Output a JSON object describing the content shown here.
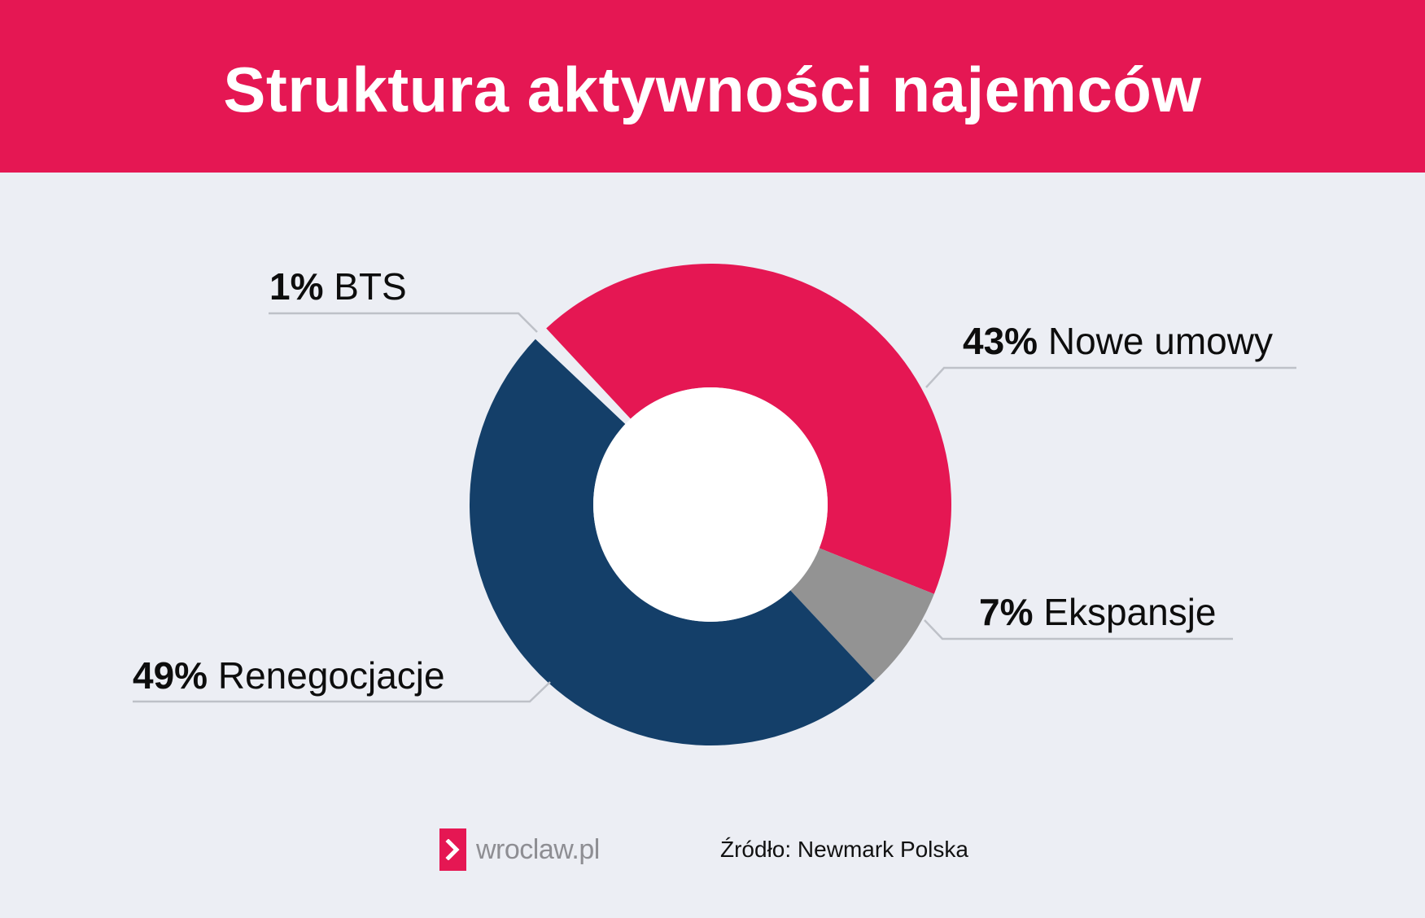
{
  "header": {
    "title": "Struktura aktywności najemców",
    "background": "#E51753"
  },
  "chart_data": {
    "type": "pie",
    "variant": "donut",
    "title": "Struktura aktywności najemców",
    "slices": [
      {
        "label": "Nowe umowy",
        "value": 43,
        "value_text": "43%",
        "color": "#E51753"
      },
      {
        "label": "Ekspansje",
        "value": 7,
        "value_text": "7%",
        "color": "#939393"
      },
      {
        "label": "Renegocjacje",
        "value": 49,
        "value_text": "49%",
        "color": "#143F69"
      },
      {
        "label": "BTS",
        "value": 1,
        "value_text": "1%",
        "color": "#ECEEF4"
      }
    ],
    "direction": "clockwise",
    "labels_outside": true
  },
  "footer": {
    "logo_text": "wroclaw.pl",
    "source": "Źródło: Newmark Polska"
  },
  "colors": {
    "background": "#ECEEF4",
    "accent": "#E51753",
    "navy": "#143F69",
    "gray": "#939393",
    "leader": "#BEC1C8"
  },
  "icons": {
    "logo": "chevron-right-icon"
  }
}
